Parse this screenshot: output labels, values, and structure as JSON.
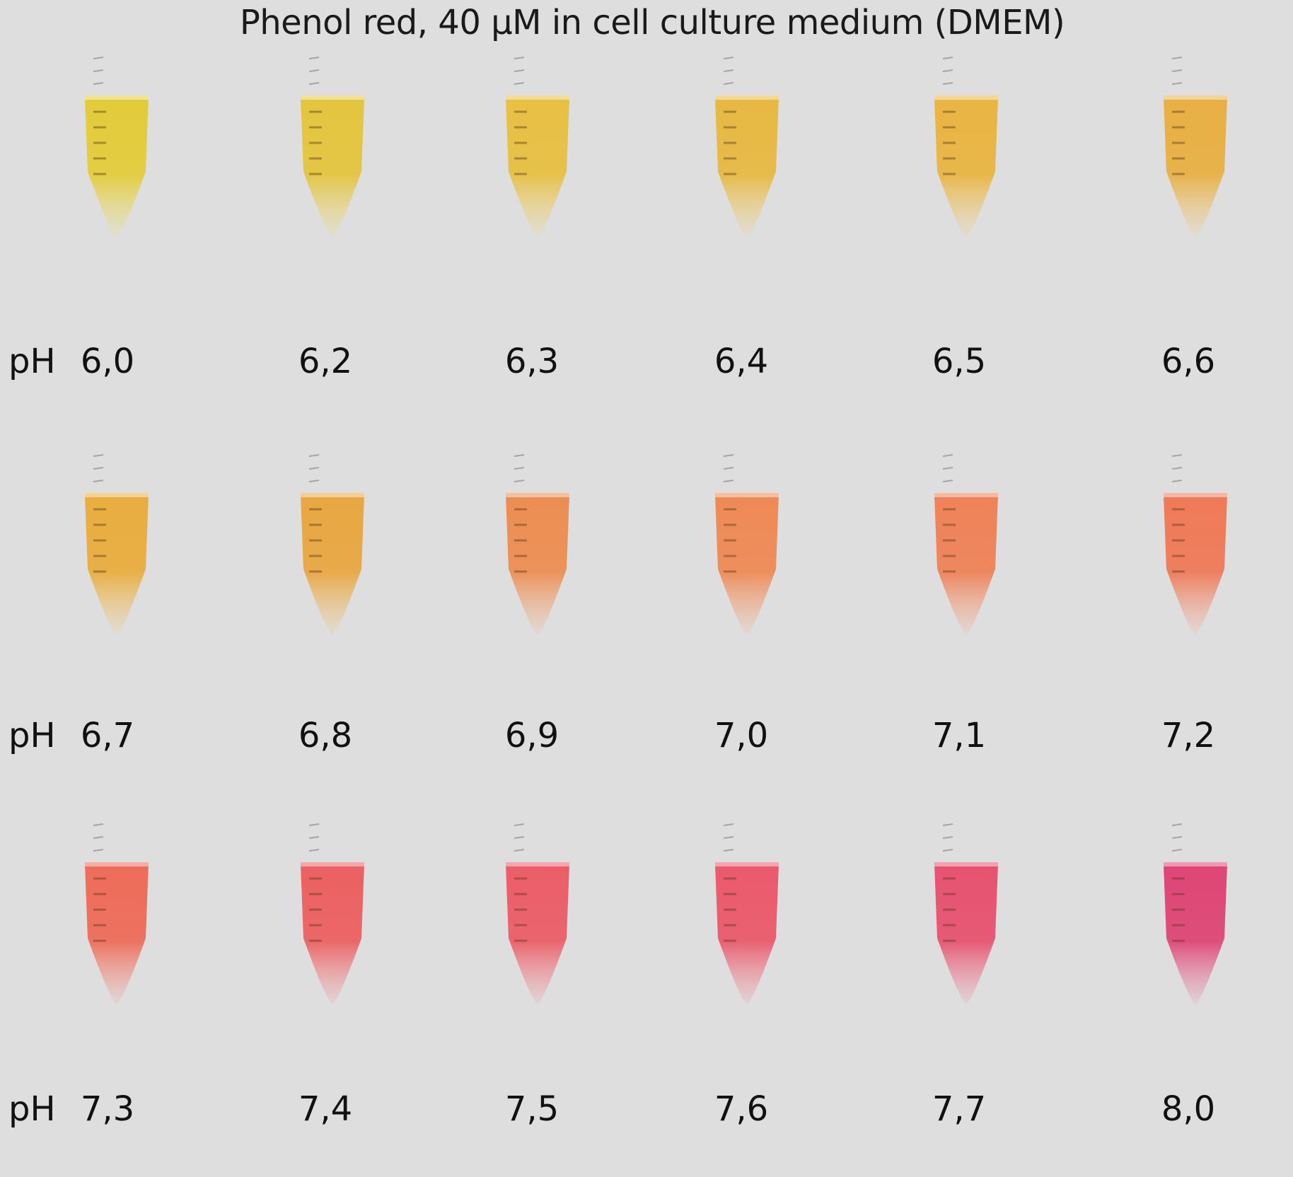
{
  "title": "Phenol red, 40 μM in cell culture medium (DMEM)",
  "rows": [
    {
      "prefix": "pH",
      "samples": [
        {
          "ph": "6,0",
          "color": "#e3cc3a"
        },
        {
          "ph": "6,2",
          "color": "#e4c53f"
        },
        {
          "ph": "6,3",
          "color": "#e7c043"
        },
        {
          "ph": "6,4",
          "color": "#e7b943"
        },
        {
          "ph": "6,5",
          "color": "#e9b543"
        },
        {
          "ph": "6,6",
          "color": "#e8b044"
        }
      ]
    },
    {
      "prefix": "pH",
      "samples": [
        {
          "ph": "6,7",
          "color": "#e9ad3f"
        },
        {
          "ph": "6,8",
          "color": "#e8a742"
        },
        {
          "ph": "6,9",
          "color": "#ec8e53"
        },
        {
          "ph": "7,0",
          "color": "#ee8a56"
        },
        {
          "ph": "7,1",
          "color": "#ef8258"
        },
        {
          "ph": "7,2",
          "color": "#ef7a58"
        }
      ]
    },
    {
      "prefix": "pH",
      "samples": [
        {
          "ph": "7,3",
          "color": "#ee6c5a"
        },
        {
          "ph": "7,4",
          "color": "#ec6162"
        },
        {
          "ph": "7,5",
          "color": "#eb5e68"
        },
        {
          "ph": "7,6",
          "color": "#ea5a6c"
        },
        {
          "ph": "7,7",
          "color": "#e65370"
        },
        {
          "ph": "8,0",
          "color": "#de4676"
        }
      ]
    }
  ]
}
